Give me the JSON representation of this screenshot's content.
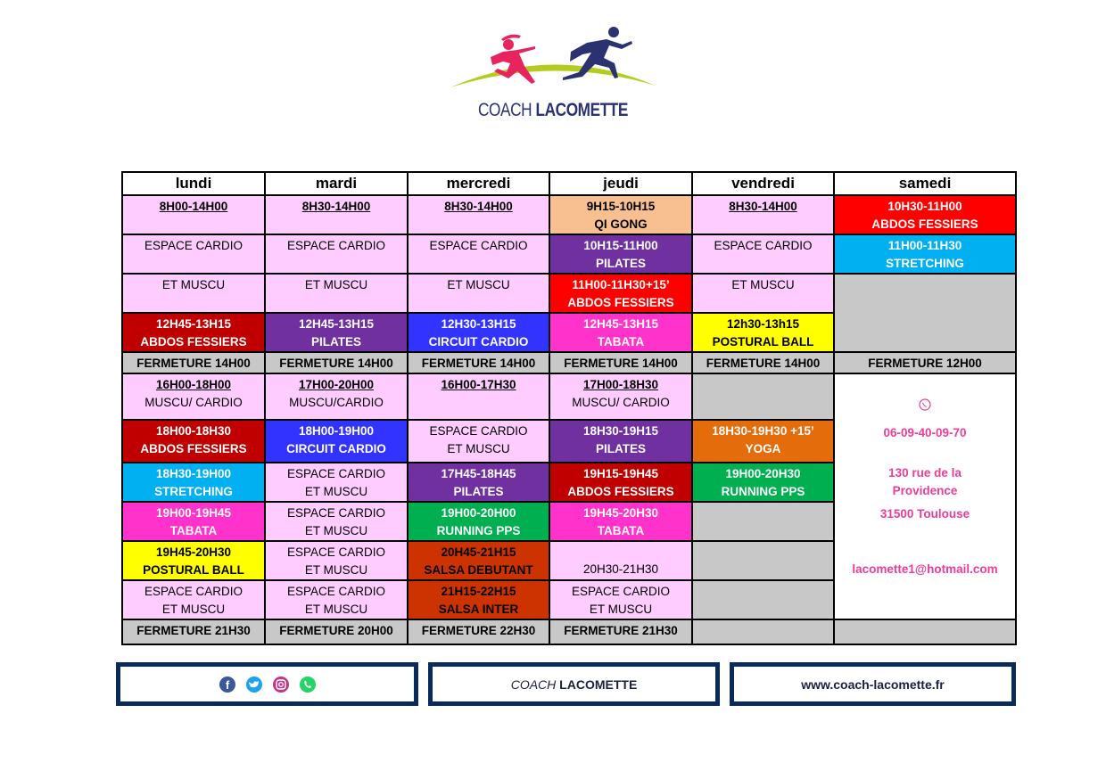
{
  "logo": {
    "text_regular": "COACH",
    "text_bold": "LACOMETTE",
    "colors": {
      "pink": "#e8245f",
      "navy": "#2b3270",
      "green": "#b5cc1f"
    }
  },
  "days": [
    "lundi",
    "mardi",
    "mercredi",
    "jeudi",
    "vendredi",
    "samedi"
  ],
  "colors": {
    "pink": "#ffccff",
    "peach": "#f8c090",
    "purple": "#7030a0",
    "red": "#ff0000",
    "darkred": "#c00000",
    "blue": "#3333ff",
    "cyan": "#00b0f0",
    "magenta": "#ff33cc",
    "yellow": "#ffff00",
    "gray": "#c8c8c8",
    "orange": "#e46c0a",
    "green": "#00b050",
    "salsa": "#cc3300"
  },
  "rows": [
    [
      {
        "l": [
          "8H00-14H00"
        ],
        "bg": "pink",
        "u": true,
        "b": true
      },
      {
        "l": [
          "8H30-14H00"
        ],
        "bg": "pink",
        "u": true,
        "b": true
      },
      {
        "l": [
          "8H30-14H00"
        ],
        "bg": "pink",
        "u": true,
        "b": true
      },
      {
        "l": [
          "9H15-10H15",
          "QI GONG"
        ],
        "bg": "peach",
        "b": true
      },
      {
        "l": [
          "8H30-14H00"
        ],
        "bg": "pink",
        "u": true,
        "b": true
      },
      {
        "l": [
          "10H30-11H00",
          "ABDOS FESSIERS"
        ],
        "bg": "red",
        "b": true,
        "w": true
      }
    ],
    [
      {
        "l": [
          "ESPACE CARDIO"
        ],
        "bg": "pink"
      },
      {
        "l": [
          "ESPACE CARDIO"
        ],
        "bg": "pink"
      },
      {
        "l": [
          "ESPACE CARDIO"
        ],
        "bg": "pink"
      },
      {
        "l": [
          "10H15-11H00",
          "PILATES"
        ],
        "bg": "purple",
        "b": true,
        "w": true
      },
      {
        "l": [
          "ESPACE CARDIO"
        ],
        "bg": "pink"
      },
      {
        "l": [
          "11H00-11H30",
          "STRETCHING"
        ],
        "bg": "cyan",
        "b": true,
        "w": true
      }
    ],
    [
      {
        "l": [
          "ET MUSCU"
        ],
        "bg": "pink"
      },
      {
        "l": [
          "ET MUSCU"
        ],
        "bg": "pink"
      },
      {
        "l": [
          "ET MUSCU"
        ],
        "bg": "pink"
      },
      {
        "l": [
          "11H00-11H30+15’",
          "ABDOS FESSIERS"
        ],
        "bg": "red",
        "b": true,
        "w": true
      },
      {
        "l": [
          "ET MUSCU"
        ],
        "bg": "pink"
      },
      {
        "l": [],
        "bg": "gray",
        "rs": 2
      }
    ],
    [
      {
        "l": [
          "12H45-13H15",
          "ABDOS FESSIERS"
        ],
        "bg": "darkred",
        "b": true,
        "w": true
      },
      {
        "l": [
          "12H45-13H15",
          "PILATES"
        ],
        "bg": "purple",
        "b": true,
        "w": true
      },
      {
        "l": [
          "12H30-13H15",
          "CIRCUIT CARDIO"
        ],
        "bg": "blue",
        "b": true,
        "w": true
      },
      {
        "l": [
          "12H45-13H15",
          "TABATA"
        ],
        "bg": "magenta",
        "b": true,
        "w": true
      },
      {
        "l": [
          "12h30-13h15",
          "POSTURAL BALL"
        ],
        "bg": "yellow",
        "b": true
      }
    ],
    [
      {
        "l": [
          "FERMETURE 14H00"
        ],
        "bg": "gray",
        "b": true
      },
      {
        "l": [
          "FERMETURE 14H00"
        ],
        "bg": "gray",
        "b": true
      },
      {
        "l": [
          "FERMETURE 14H00"
        ],
        "bg": "gray",
        "b": true
      },
      {
        "l": [
          "FERMETURE 14H00"
        ],
        "bg": "gray",
        "b": true
      },
      {
        "l": [
          "FERMETURE 14H00"
        ],
        "bg": "gray",
        "b": true
      },
      {
        "l": [
          "FERMETURE 12H00"
        ],
        "bg": "gray",
        "b": true
      }
    ],
    [
      {
        "l": [
          "16H00-18H00",
          "MUSCU/ CARDIO"
        ],
        "bg": "pink",
        "u": true
      },
      {
        "l": [
          "17H00-20H00",
          "MUSCU/CARDIO"
        ],
        "bg": "pink",
        "u": true
      },
      {
        "l": [
          "16H00-17H30"
        ],
        "bg": "pink",
        "u": true
      },
      {
        "l": [
          "17H00-18H30",
          "MUSCU/ CARDIO"
        ],
        "bg": "pink",
        "u": true
      },
      {
        "l": [],
        "bg": "gray"
      },
      {
        "contact": true,
        "rs": 6
      }
    ],
    [
      {
        "l": [
          "18H00-18H30",
          "ABDOS FESSIERS"
        ],
        "bg": "darkred",
        "b": true,
        "w": true
      },
      {
        "l": [
          "18H00-19H00",
          "CIRCUIT CARDIO"
        ],
        "bg": "blue",
        "b": true,
        "w": true
      },
      {
        "l": [
          "ESPACE CARDIO",
          "ET MUSCU"
        ],
        "bg": "pink"
      },
      {
        "l": [
          "18H30-19H15",
          "PILATES"
        ],
        "bg": "purple",
        "b": true,
        "w": true
      },
      {
        "l": [
          "18H30-19H30 +15’",
          "YOGA"
        ],
        "bg": "orange",
        "b": true,
        "w": true
      }
    ],
    [
      {
        "l": [
          "18H30-19H00",
          "STRETCHING"
        ],
        "bg": "cyan",
        "b": true,
        "w": true
      },
      {
        "l": [
          "ESPACE CARDIO",
          "ET MUSCU"
        ],
        "bg": "pink"
      },
      {
        "l": [
          "17H45-18H45",
          "PILATES"
        ],
        "bg": "purple",
        "b": true,
        "w": true
      },
      {
        "l": [
          "19H15-19H45",
          "ABDOS FESSIERS"
        ],
        "bg": "darkred",
        "b": true,
        "w": true
      },
      {
        "l": [
          "19H00-20H30",
          "RUNNING PPS"
        ],
        "bg": "green",
        "b": true,
        "w": true
      }
    ],
    [
      {
        "l": [
          "19H00-19H45",
          "TABATA"
        ],
        "bg": "magenta",
        "b": true,
        "w": true
      },
      {
        "l": [
          "ESPACE CARDIO",
          "ET MUSCU"
        ],
        "bg": "pink"
      },
      {
        "l": [
          "19H00-20H00",
          "RUNNING PPS"
        ],
        "bg": "green",
        "b": true,
        "w": true
      },
      {
        "l": [
          "19H45-20H30",
          "TABATA"
        ],
        "bg": "magenta",
        "b": true,
        "w": true
      },
      {
        "l": [],
        "bg": "gray"
      }
    ],
    [
      {
        "l": [
          "19H45-20H30",
          "POSTURAL BALL"
        ],
        "bg": "yellow",
        "b": true
      },
      {
        "l": [
          "ESPACE CARDIO",
          "ET MUSCU"
        ],
        "bg": "pink"
      },
      {
        "l": [
          "20H45-21H15",
          "SALSA DEBUTANT"
        ],
        "bg": "salsa",
        "b": true
      },
      {
        "l": [
          "20H30-21H30"
        ],
        "bg": "pink",
        "bot": true
      },
      {
        "l": [],
        "bg": "gray"
      }
    ],
    [
      {
        "l": [
          "ESPACE CARDIO",
          "ET MUSCU"
        ],
        "bg": "pink"
      },
      {
        "l": [
          "ESPACE CARDIO",
          "ET MUSCU"
        ],
        "bg": "pink"
      },
      {
        "l": [
          "21H15-22H15",
          "SALSA INTER"
        ],
        "bg": "salsa",
        "b": true
      },
      {
        "l": [
          "ESPACE CARDIO",
          "ET MUSCU"
        ],
        "bg": "pink"
      },
      {
        "l": [],
        "bg": "gray"
      }
    ],
    [
      {
        "l": [
          "FERMETURE 21H30"
        ],
        "bg": "gray",
        "b": true
      },
      {
        "l": [
          "FERMETURE 20H00"
        ],
        "bg": "gray",
        "b": true
      },
      {
        "l": [
          "FERMETURE 22H30"
        ],
        "bg": "gray",
        "b": true
      },
      {
        "l": [
          "FERMETURE 21H30"
        ],
        "bg": "gray",
        "b": true
      },
      {
        "l": [],
        "bg": "gray"
      },
      {
        "l": [],
        "bg": "gray"
      }
    ]
  ],
  "row_heights_note": null,
  "contact": {
    "icon": "whatsapp-icon",
    "phone": "06-09-40-09-70",
    "address_line1": "130 rue de la",
    "address_line2": "Providence",
    "city": "31500 Toulouse",
    "email": "lacomette1@hotmail.com",
    "color": "#ec3d98"
  },
  "footer": {
    "social_icons": [
      "facebook-icon",
      "twitter-icon",
      "instagram-icon",
      "whatsapp-icon"
    ],
    "brand_italic": "COACH",
    "brand_bold": "LACOMETTE",
    "website": "www.coach-lacomette.fr",
    "border_color": "#0a2a5c"
  }
}
